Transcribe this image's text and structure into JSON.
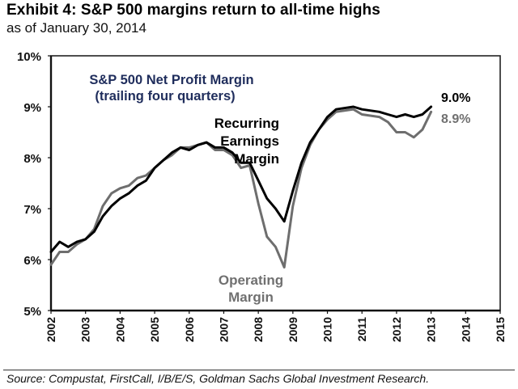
{
  "header": {
    "title": "Exhibit 4: S&P 500 margins return to all-time highs",
    "subtitle": "as of January 30, 2014"
  },
  "footer": {
    "source": "Source: Compustat, FirstCall, I/B/E/S, Goldman Sachs Global Investment Research."
  },
  "chart_data": {
    "type": "line",
    "title": "S&P 500 Net Profit  Margin",
    "subtitle": "(trailing four quarters)",
    "title_color": "#1f2d5c",
    "xlabel": "",
    "ylabel": "",
    "xlim": [
      2002,
      2015
    ],
    "ylim": [
      5,
      10
    ],
    "x_ticks": [
      "2002",
      "2003",
      "2004",
      "2005",
      "2006",
      "2007",
      "2008",
      "2009",
      "2010",
      "2011",
      "2012",
      "2013",
      "2014",
      "2015"
    ],
    "y_ticks": [
      "5%",
      "6%",
      "7%",
      "8%",
      "9%",
      "10%"
    ],
    "grid": false,
    "legend": "inline-annotations",
    "series": [
      {
        "name": "Recurring Earnings Margin",
        "label_lines": [
          "Recurring",
          "Earnings",
          "Margin"
        ],
        "color": "#000000",
        "end_label": "9.0%",
        "x": [
          2002.0,
          2002.25,
          2002.5,
          2002.75,
          2003.0,
          2003.25,
          2003.5,
          2003.75,
          2004.0,
          2004.25,
          2004.5,
          2004.75,
          2005.0,
          2005.25,
          2005.5,
          2005.75,
          2006.0,
          2006.25,
          2006.5,
          2006.75,
          2007.0,
          2007.25,
          2007.5,
          2007.75,
          2008.0,
          2008.25,
          2008.5,
          2008.75,
          2009.0,
          2009.25,
          2009.5,
          2009.75,
          2010.0,
          2010.25,
          2010.75,
          2011.0,
          2011.5,
          2011.75,
          2012.0,
          2012.25,
          2012.5,
          2012.75,
          2013.0
        ],
        "values": [
          6.15,
          6.35,
          6.25,
          6.35,
          6.4,
          6.55,
          6.85,
          7.05,
          7.2,
          7.3,
          7.45,
          7.55,
          7.8,
          7.95,
          8.1,
          8.2,
          8.15,
          8.25,
          8.3,
          8.2,
          8.2,
          8.1,
          7.9,
          7.9,
          7.55,
          7.2,
          7.0,
          6.75,
          7.35,
          7.9,
          8.3,
          8.55,
          8.8,
          8.95,
          9.0,
          8.95,
          8.9,
          8.85,
          8.8,
          8.85,
          8.8,
          8.85,
          9.0
        ]
      },
      {
        "name": "Operating Margin",
        "label_lines": [
          "Operating",
          "Margin"
        ],
        "color": "#6e6e6e",
        "end_label": "8.9%",
        "x": [
          2002.0,
          2002.25,
          2002.5,
          2002.75,
          2003.0,
          2003.25,
          2003.5,
          2003.75,
          2004.0,
          2004.25,
          2004.5,
          2004.75,
          2005.0,
          2005.25,
          2005.5,
          2005.75,
          2006.0,
          2006.25,
          2006.5,
          2006.75,
          2007.0,
          2007.25,
          2007.5,
          2007.75,
          2008.0,
          2008.25,
          2008.5,
          2008.75,
          2009.0,
          2009.25,
          2009.5,
          2009.75,
          2010.0,
          2010.25,
          2010.75,
          2011.0,
          2011.5,
          2011.75,
          2012.0,
          2012.25,
          2012.5,
          2012.75,
          2013.0
        ],
        "values": [
          5.9,
          6.15,
          6.15,
          6.3,
          6.4,
          6.6,
          7.05,
          7.3,
          7.4,
          7.45,
          7.6,
          7.65,
          7.8,
          7.95,
          8.05,
          8.2,
          8.2,
          8.25,
          8.3,
          8.15,
          8.15,
          8.05,
          7.8,
          7.85,
          7.1,
          6.45,
          6.25,
          5.85,
          7.05,
          7.8,
          8.25,
          8.55,
          8.75,
          8.9,
          8.95,
          8.85,
          8.8,
          8.7,
          8.5,
          8.5,
          8.4,
          8.55,
          8.9
        ]
      }
    ]
  }
}
